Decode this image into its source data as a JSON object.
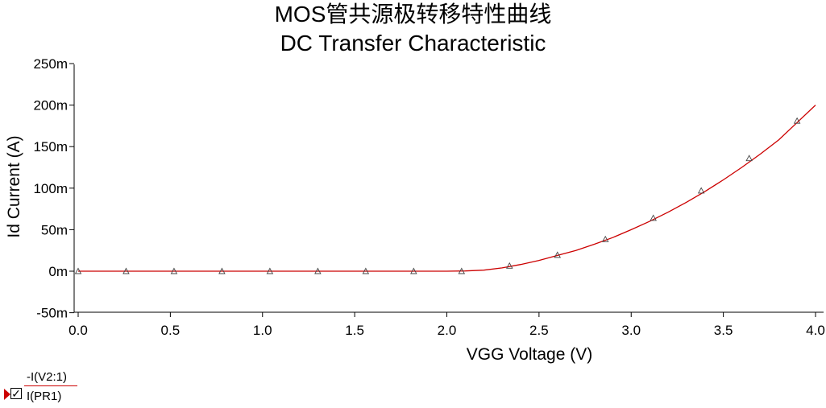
{
  "chart_data": {
    "type": "line",
    "title": "MOS管共源极转移特性曲线",
    "subtitle": "DC Transfer Characteristic",
    "xlabel": "VGG Voltage (V)",
    "ylabel": "Id Current (A)",
    "xlim": [
      0.0,
      4.0
    ],
    "ylim": [
      -50,
      250
    ],
    "y_unit": "m",
    "x_ticks": [
      "0.0",
      "0.5",
      "1.0",
      "1.5",
      "2.0",
      "2.5",
      "3.0",
      "3.5",
      "4.0"
    ],
    "y_ticks": [
      "-50m",
      "0m",
      "50m",
      "100m",
      "150m",
      "200m",
      "250m"
    ],
    "grid": false,
    "legend_position": "bottom-left",
    "line_color": "#cc0000",
    "series": [
      {
        "legend_top": "-I(V2:1)",
        "legend_bottom": "I(PR1)",
        "x": [
          0.0,
          0.26,
          0.52,
          0.78,
          1.04,
          1.3,
          1.56,
          1.82,
          2.08,
          2.34,
          2.6,
          2.86,
          3.12,
          3.38,
          3.64,
          3.9
        ],
        "y": [
          0,
          0,
          0,
          0,
          0,
          0,
          0,
          0,
          0,
          6.5,
          19.5,
          38.5,
          64,
          97,
          136,
          181
        ],
        "line_x": [
          0.0,
          2.0,
          2.1,
          2.2,
          2.3,
          2.4,
          2.5,
          2.6,
          2.7,
          2.8,
          2.9,
          3.0,
          3.1,
          3.2,
          3.3,
          3.4,
          3.5,
          3.6,
          3.7,
          3.8,
          3.9,
          4.0
        ],
        "line_y": [
          0,
          0,
          0.3,
          1.3,
          4.0,
          8.0,
          13.0,
          19.0,
          25.0,
          32.5,
          40.5,
          50.0,
          60.0,
          71.0,
          83.0,
          96.0,
          110.0,
          125.0,
          141.0,
          158.0,
          179.0,
          200.0
        ]
      }
    ]
  }
}
